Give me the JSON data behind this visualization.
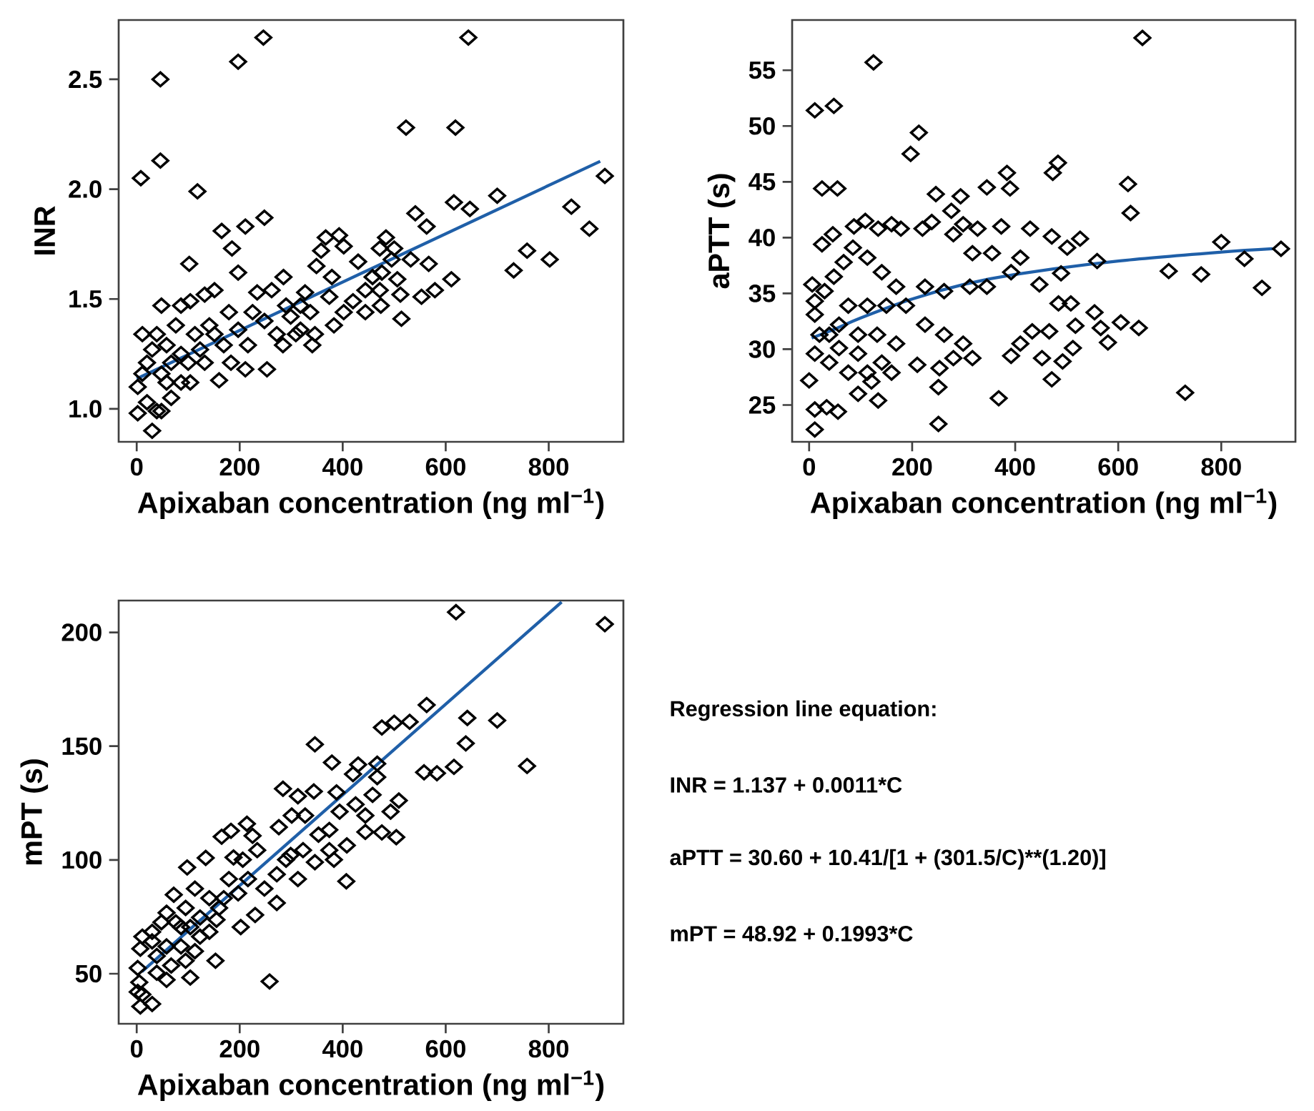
{
  "chart_data": [
    {
      "type": "scatter",
      "xlabel": "Apixaban concentration (ng ml$^{−1}$)",
      "ylabel": "INR",
      "xlim": [
        -35,
        945
      ],
      "ylim": [
        0.85,
        2.77
      ],
      "xticks": [
        0,
        200,
        400,
        600,
        800
      ],
      "yticks": [
        {
          "value": 1.0,
          "label": "1.0"
        },
        {
          "value": 1.5,
          "label": "1.5"
        },
        {
          "value": 2.0,
          "label": "2.0"
        },
        {
          "value": 2.5,
          "label": "2.5"
        }
      ],
      "grid": false,
      "series": [
        {
          "color": "#000000",
          "marker": "diamond",
          "x": [
            46,
            197,
            246,
            644,
            523,
            619,
            46,
            8,
            118,
            909,
            700,
            616,
            647,
            541,
            563,
            844,
            879,
            758,
            732,
            802,
            611,
            579,
            553,
            567,
            532,
            514,
            512,
            506,
            484,
            472,
            500,
            495,
            476,
            472,
            474,
            444,
            444,
            458,
            430,
            402,
            393,
            367,
            358,
            379,
            349,
            327,
            337,
            341,
            318,
            299,
            285,
            284,
            253,
            248,
            211,
            197,
            185,
            165,
            102,
            160,
            30,
            2,
            48,
            151,
            132,
            234,
            262,
            216,
            211,
            183,
            290,
            383,
            402,
            374,
            318,
            248,
            179,
            151,
            123,
            113,
            100,
            86,
            67,
            48,
            39,
            48,
            11,
            2,
            20,
            30,
            58,
            76,
            86,
            104,
            141,
            169,
            67,
            104,
            20,
            39,
            11,
            58,
            86,
            132,
            197,
            225,
            272,
            309,
            346,
            420
          ],
          "values": [
            2.5,
            2.58,
            2.69,
            2.69,
            2.28,
            2.28,
            2.13,
            2.05,
            1.99,
            2.06,
            1.97,
            1.94,
            1.91,
            1.89,
            1.83,
            1.92,
            1.82,
            1.72,
            1.63,
            1.68,
            1.59,
            1.54,
            1.51,
            1.66,
            1.68,
            1.41,
            1.52,
            1.59,
            1.78,
            1.73,
            1.73,
            1.68,
            1.62,
            1.54,
            1.47,
            1.44,
            1.54,
            1.6,
            1.67,
            1.74,
            1.79,
            1.78,
            1.72,
            1.6,
            1.65,
            1.53,
            1.44,
            1.29,
            1.36,
            1.42,
            1.6,
            1.29,
            1.18,
            1.87,
            1.83,
            1.62,
            1.73,
            1.81,
            1.66,
            1.13,
            0.9,
            0.98,
            0.99,
            1.54,
            1.52,
            1.53,
            1.54,
            1.29,
            1.18,
            1.21,
            1.47,
            1.38,
            1.44,
            1.51,
            1.47,
            1.4,
            1.44,
            1.34,
            1.27,
            1.34,
            1.21,
            1.12,
            1.05,
            1.16,
            1.34,
            1.47,
            1.34,
            1.1,
            1.21,
            1.27,
            1.29,
            1.38,
            1.47,
            1.49,
            1.38,
            1.29,
            1.21,
            1.12,
            1.03,
            0.99,
            1.16,
            1.12,
            1.25,
            1.21,
            1.36,
            1.44,
            1.34,
            1.34,
            1.34,
            1.49
          ]
        },
        {
          "type": "line",
          "color": "#1f5fa8",
          "marker": "none",
          "x": [
            0,
            900
          ],
          "values": [
            1.137,
            2.127
          ]
        }
      ]
    },
    {
      "type": "scatter",
      "xlabel": "Apixaban concentration (ng ml$^{−1}$)",
      "ylabel": "aPTT (s)",
      "xlim": [
        -33,
        944
      ],
      "ylim": [
        21.7,
        59.5
      ],
      "xticks": [
        0,
        200,
        400,
        600,
        800
      ],
      "yticks": [
        25,
        30,
        35,
        40,
        45,
        50,
        55
      ],
      "grid": false,
      "series": [
        {
          "color": "#000000",
          "marker": "diamond",
          "x": [
            647,
            125,
            11,
            48,
            213,
            197,
            25,
            55,
            483,
            473,
            384,
            390,
            345,
            619,
            624,
            246,
            294,
            276,
            800,
            916,
            845,
            879,
            698,
            761,
            730,
            605,
            640,
            580,
            566,
            554,
            559,
            526,
            501,
            471,
            429,
            410,
            392,
            373,
            447,
            489,
            484,
            508,
            517,
            512,
            492,
            471,
            452,
            466,
            433,
            410,
            392,
            368,
            251,
            251,
            253,
            210,
            11,
            0,
            11,
            34,
            56,
            95,
            134,
            121,
            6,
            25,
            46,
            87,
            109,
            134,
            160,
            178,
            220,
            238,
            280,
            299,
            327,
            317,
            355,
            345,
            312,
            262,
            225,
            188,
            225,
            262,
            299,
            317,
            280,
            169,
            141,
            160,
            76,
            39,
            11,
            20,
            11,
            11,
            30,
            48,
            67,
            85,
            113,
            141,
            169,
            150,
            113,
            76,
            58,
            39,
            95,
            132,
            95,
            58,
            113
          ],
          "values": [
            57.9,
            55.7,
            51.4,
            51.8,
            49.4,
            47.5,
            44.4,
            44.4,
            46.7,
            45.8,
            45.8,
            44.4,
            44.5,
            44.8,
            42.2,
            43.9,
            43.7,
            42.4,
            39.6,
            39.0,
            38.1,
            35.5,
            37.0,
            36.7,
            26.1,
            32.4,
            31.9,
            30.6,
            31.9,
            33.3,
            37.9,
            39.9,
            39.1,
            40.1,
            40.8,
            38.2,
            36.9,
            41.0,
            35.8,
            36.8,
            34.1,
            34.1,
            32.1,
            30.1,
            28.9,
            27.3,
            29.2,
            31.6,
            31.6,
            30.5,
            29.4,
            25.6,
            26.6,
            23.3,
            28.3,
            28.6,
            22.8,
            27.2,
            24.6,
            24.8,
            24.4,
            26.0,
            25.4,
            27.1,
            35.8,
            39.4,
            40.3,
            41.0,
            41.5,
            40.8,
            41.2,
            40.8,
            40.8,
            41.4,
            40.3,
            41.2,
            40.8,
            38.6,
            38.6,
            35.6,
            35.6,
            35.2,
            35.6,
            33.9,
            32.2,
            31.3,
            30.5,
            29.2,
            29.2,
            30.5,
            28.8,
            27.9,
            27.9,
            28.8,
            29.6,
            31.3,
            33.1,
            34.3,
            35.2,
            36.5,
            37.8,
            39.1,
            38.2,
            36.9,
            35.6,
            33.9,
            33.9,
            33.9,
            32.2,
            31.3,
            31.3,
            31.3,
            29.6,
            30.1,
            27.9
          ]
        },
        {
          "type": "line",
          "color": "#1f5fa8",
          "marker": "none",
          "x": [
            5,
            50,
            100,
            200,
            300,
            400,
            600,
            800,
            900
          ],
          "values": [
            31.0,
            31.8,
            32.8,
            34.5,
            35.8,
            36.7,
            37.9,
            38.7,
            39.0
          ]
        }
      ]
    },
    {
      "type": "scatter",
      "xlabel": "Apixaban concentration (ng ml$^{−1}$)",
      "ylabel": "mPT (s)",
      "xlim": [
        -35,
        945
      ],
      "ylim": [
        28,
        214
      ],
      "xticks": [
        0,
        200,
        400,
        600,
        800
      ],
      "yticks": [
        50,
        100,
        150,
        200
      ],
      "grid": false,
      "series": [
        {
          "color": "#000000",
          "marker": "diamond",
          "x": [
            620,
            909,
            563,
            642,
            700,
            530,
            500,
            476,
            639,
            346,
            758,
            616,
            558,
            583,
            379,
            430,
            467,
            420,
            467,
            284,
            388,
            344,
            313,
            458,
            509,
            425,
            444,
            493,
            301,
            327,
            394,
            276,
            444,
            476,
            504,
            374,
            353,
            214,
            183,
            165,
            225,
            408,
            374,
            323,
            290,
            346,
            383,
            134,
            98,
            188,
            206,
            234,
            407,
            313,
            272,
            248,
            272,
            230,
            202,
            197,
            169,
            141,
            155,
            153,
            258,
            113,
            72,
            95,
            123,
            104,
            76,
            48,
            30,
            11,
            7,
            2,
            2,
            11,
            7,
            30,
            5,
            58,
            104,
            39,
            67,
            95,
            113,
            86,
            58,
            39,
            123,
            141,
            58,
            86,
            30,
            179,
            160,
            216,
            299
          ],
          "values": [
            208.9,
            203.6,
            168.1,
            162.4,
            161.3,
            160.7,
            160.3,
            158.2,
            151.2,
            150.8,
            141.3,
            140.9,
            138.5,
            138.1,
            142.8,
            141.9,
            142.3,
            137.7,
            136.4,
            131.3,
            129.7,
            130.1,
            128.0,
            128.6,
            126.1,
            124.4,
            119.5,
            121.2,
            119.5,
            119.5,
            121.2,
            114.4,
            112.3,
            112.1,
            110.0,
            113.2,
            111.1,
            115.9,
            112.8,
            110.2,
            110.6,
            106.4,
            104.3,
            104.3,
            100.1,
            99.0,
            100.1,
            100.9,
            96.7,
            101.1,
            100.1,
            104.3,
            90.6,
            91.6,
            93.7,
            87.4,
            81.1,
            75.8,
            70.5,
            85.3,
            83.2,
            83.2,
            73.7,
            55.7,
            46.6,
            87.4,
            84.7,
            78.9,
            74.7,
            70.5,
            72.6,
            72.6,
            68.4,
            66.3,
            61.0,
            52.5,
            42.0,
            40.9,
            35.6,
            36.7,
            46.2,
            47.3,
            48.3,
            50.4,
            53.6,
            55.7,
            59.9,
            62.0,
            62.0,
            57.8,
            66.3,
            68.4,
            76.8,
            70.5,
            64.2,
            91.6,
            78.9,
            91.6,
            102.2
          ]
        },
        {
          "type": "line",
          "color": "#1f5fa8",
          "marker": "none",
          "x": [
            10,
            825
          ],
          "values": [
            50.9,
            213.3
          ]
        }
      ]
    },
    {
      "type": "other",
      "title": "Regression line equation:",
      "annotations": [
        "INR = 1.137 + 0.0011*C",
        "aPTT = 30.60 + 10.41/[1 + (301.5/C)**(1.20)]",
        "mPT = 48.92 + 0.1993*C"
      ]
    }
  ]
}
